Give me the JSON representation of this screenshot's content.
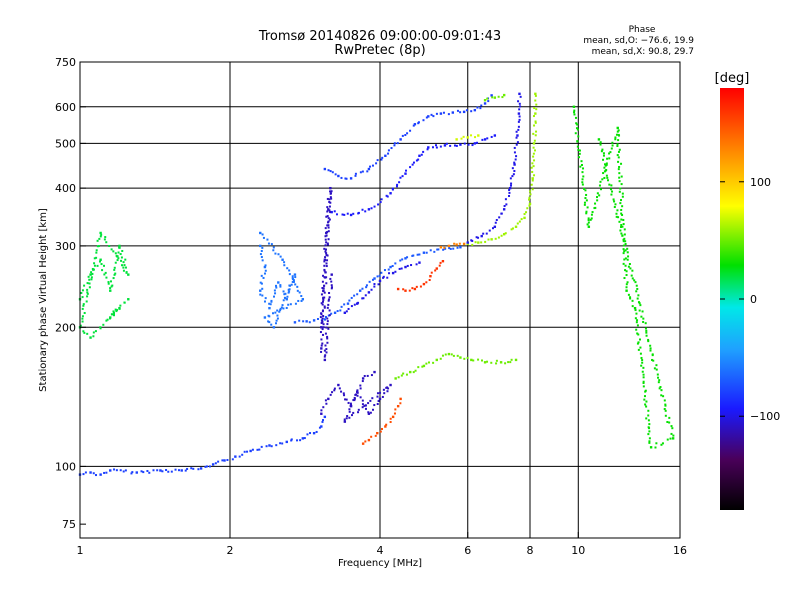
{
  "chart_data": {
    "type": "scatter",
    "title": "Tromsø 20140826 09:00:00-09:01:43",
    "subtitle": "RwPretec (8p)",
    "xlabel": "Frequency [MHz]",
    "ylabel": "Stationary phase Virtual Height [km]",
    "x_scale": "log",
    "y_scale": "log",
    "xlim": [
      1,
      16
    ],
    "ylim": [
      70,
      750
    ],
    "x_ticks": [
      1,
      2,
      4,
      6,
      8,
      10,
      16
    ],
    "x_tick_labels": [
      "1",
      "2",
      "4",
      "6",
      "8",
      "10",
      "16"
    ],
    "x_grid": [
      2,
      4,
      6,
      8,
      10
    ],
    "y_ticks": [
      75,
      100,
      200,
      300,
      400,
      500,
      600,
      750
    ],
    "y_tick_labels": [
      "75",
      "100",
      "200",
      "300",
      "400",
      "500",
      "600",
      "750"
    ],
    "y_grid": [
      100,
      200,
      300,
      400,
      500,
      600
    ],
    "grid": true,
    "phase_stats": {
      "title": "Phase",
      "line1": "mean, sd,O: −76.6, 19.9",
      "line2": "mean, sd,X:  90.8, 29.7"
    },
    "colorbar": {
      "label": "[deg]",
      "range": [
        -180,
        180
      ],
      "ticks": [
        100,
        0,
        -100
      ],
      "tick_labels": [
        "100",
        "0",
        "−100"
      ]
    },
    "series": [
      {
        "color_phase": -80,
        "points": [
          [
            1.0,
            96
          ],
          [
            1.05,
            97
          ],
          [
            1.1,
            96
          ],
          [
            1.15,
            98
          ],
          [
            1.3,
            97
          ],
          [
            1.45,
            98
          ],
          [
            1.6,
            98
          ],
          [
            1.75,
            99
          ],
          [
            1.85,
            101
          ],
          [
            1.95,
            103
          ],
          [
            2.05,
            105
          ],
          [
            2.2,
            108
          ],
          [
            2.4,
            111
          ],
          [
            2.6,
            113
          ],
          [
            2.8,
            115
          ],
          [
            2.95,
            118
          ],
          [
            3.05,
            122
          ],
          [
            3.1,
            128
          ]
        ]
      },
      {
        "color_phase": -110,
        "points": [
          [
            3.05,
            130
          ],
          [
            3.15,
            140
          ],
          [
            3.3,
            150
          ],
          [
            3.5,
            135
          ],
          [
            3.6,
            145
          ],
          [
            3.8,
            130
          ],
          [
            4.0,
            140
          ],
          [
            4.2,
            150
          ],
          [
            3.4,
            125
          ],
          [
            3.7,
            155
          ],
          [
            3.9,
            160
          ]
        ]
      },
      {
        "color_phase": 150,
        "points": [
          [
            3.7,
            112
          ],
          [
            3.8,
            114
          ],
          [
            3.95,
            118
          ],
          [
            4.1,
            122
          ],
          [
            4.25,
            128
          ],
          [
            4.35,
            135
          ],
          [
            4.4,
            140
          ]
        ]
      },
      {
        "color_phase": 50,
        "points": [
          [
            4.3,
            155
          ],
          [
            4.6,
            160
          ],
          [
            4.9,
            165
          ],
          [
            5.2,
            170
          ],
          [
            5.5,
            175
          ],
          [
            5.8,
            172
          ],
          [
            6.1,
            170
          ],
          [
            6.5,
            168
          ],
          [
            7.0,
            168
          ],
          [
            7.5,
            170
          ]
        ]
      },
      {
        "color_phase": -70,
        "points": [
          [
            2.7,
            205
          ],
          [
            2.85,
            206
          ],
          [
            2.95,
            207
          ],
          [
            3.1,
            208
          ],
          [
            3.25,
            215
          ],
          [
            3.45,
            225
          ],
          [
            3.65,
            240
          ],
          [
            3.9,
            255
          ],
          [
            4.2,
            270
          ],
          [
            4.5,
            282
          ],
          [
            4.9,
            290
          ],
          [
            5.4,
            296
          ],
          [
            5.8,
            298
          ]
        ]
      },
      {
        "color_phase": -100,
        "points": [
          [
            3.4,
            215
          ],
          [
            3.6,
            225
          ],
          [
            3.8,
            238
          ],
          [
            4.0,
            252
          ],
          [
            4.25,
            262
          ],
          [
            4.5,
            270
          ],
          [
            4.8,
            276
          ]
        ]
      },
      {
        "color_phase": 160,
        "points": [
          [
            4.35,
            242
          ],
          [
            4.5,
            240
          ],
          [
            4.7,
            242
          ],
          [
            4.9,
            248
          ],
          [
            5.05,
            258
          ],
          [
            5.2,
            268
          ],
          [
            5.35,
            278
          ]
        ]
      },
      {
        "color_phase": 130,
        "points": [
          [
            5.3,
            298
          ],
          [
            5.5,
            300
          ],
          [
            5.7,
            302
          ],
          [
            5.9,
            303
          ]
        ]
      },
      {
        "color_phase": 60,
        "points": [
          [
            6.0,
            303
          ],
          [
            6.3,
            305
          ],
          [
            6.7,
            310
          ],
          [
            7.1,
            318
          ],
          [
            7.5,
            330
          ],
          [
            7.8,
            345
          ],
          [
            8.0,
            370
          ],
          [
            8.1,
            420
          ],
          [
            8.15,
            500
          ],
          [
            8.2,
            580
          ],
          [
            8.2,
            640
          ]
        ]
      },
      {
        "color_phase": -100,
        "points": [
          [
            6.0,
            305
          ],
          [
            6.4,
            315
          ],
          [
            6.8,
            330
          ],
          [
            7.1,
            360
          ],
          [
            7.3,
            400
          ],
          [
            7.45,
            450
          ],
          [
            7.55,
            520
          ],
          [
            7.6,
            580
          ],
          [
            7.62,
            640
          ]
        ]
      },
      {
        "color_phase": -80,
        "points": [
          [
            3.1,
            440
          ],
          [
            3.3,
            425
          ],
          [
            3.5,
            420
          ],
          [
            3.8,
            440
          ],
          [
            4.1,
            470
          ],
          [
            4.4,
            510
          ],
          [
            4.7,
            550
          ],
          [
            5.0,
            572
          ],
          [
            5.3,
            580
          ],
          [
            5.6,
            583
          ],
          [
            5.9,
            585
          ],
          [
            6.2,
            590
          ],
          [
            6.5,
            610
          ],
          [
            6.7,
            635
          ]
        ]
      },
      {
        "color_phase": 50,
        "points": [
          [
            6.5,
            620
          ],
          [
            6.8,
            628
          ],
          [
            7.1,
            636
          ]
        ]
      },
      {
        "color_phase": -95,
        "points": [
          [
            3.2,
            355
          ],
          [
            3.5,
            350
          ],
          [
            3.8,
            360
          ],
          [
            4.2,
            390
          ],
          [
            4.5,
            430
          ],
          [
            4.8,
            470
          ],
          [
            5.0,
            490
          ],
          [
            5.4,
            495
          ],
          [
            5.8,
            497
          ],
          [
            6.2,
            500
          ],
          [
            6.5,
            510
          ],
          [
            6.8,
            520
          ]
        ]
      },
      {
        "color_phase": 70,
        "points": [
          [
            5.7,
            510
          ],
          [
            6.0,
            515
          ],
          [
            6.3,
            520
          ]
        ]
      },
      {
        "color_phase": 20,
        "points": [
          [
            1.0,
            230
          ],
          [
            1.05,
            260
          ],
          [
            1.1,
            280
          ],
          [
            1.15,
            240
          ],
          [
            1.2,
            300
          ],
          [
            1.25,
            260
          ],
          [
            1.1,
            320
          ],
          [
            1.0,
            200
          ],
          [
            1.05,
            190
          ],
          [
            1.2,
            220
          ],
          [
            1.15,
            210
          ],
          [
            1.25,
            230
          ]
        ]
      },
      {
        "color_phase": -60,
        "points": [
          [
            2.3,
            300
          ],
          [
            2.35,
            270
          ],
          [
            2.3,
            240
          ],
          [
            2.4,
            220
          ],
          [
            2.5,
            250
          ],
          [
            2.6,
            230
          ],
          [
            2.7,
            260
          ],
          [
            2.45,
            200
          ],
          [
            2.35,
            210
          ],
          [
            2.8,
            230
          ],
          [
            2.55,
            280
          ],
          [
            2.3,
            320
          ]
        ]
      },
      {
        "color_phase": -110,
        "points": [
          [
            3.05,
            200
          ],
          [
            3.08,
            240
          ],
          [
            3.1,
            280
          ],
          [
            3.12,
            320
          ],
          [
            3.15,
            360
          ],
          [
            3.18,
            400
          ],
          [
            3.05,
            180
          ],
          [
            3.1,
            170
          ],
          [
            3.2,
            260
          ]
        ]
      },
      {
        "color_phase": 30,
        "points": [
          [
            9.8,
            600
          ],
          [
            10.5,
            330
          ],
          [
            12.0,
            540
          ],
          [
            12.5,
            240
          ],
          [
            13.0,
            220
          ],
          [
            14.0,
            110
          ],
          [
            15.5,
            115
          ],
          [
            11.0,
            510
          ]
        ]
      }
    ]
  }
}
